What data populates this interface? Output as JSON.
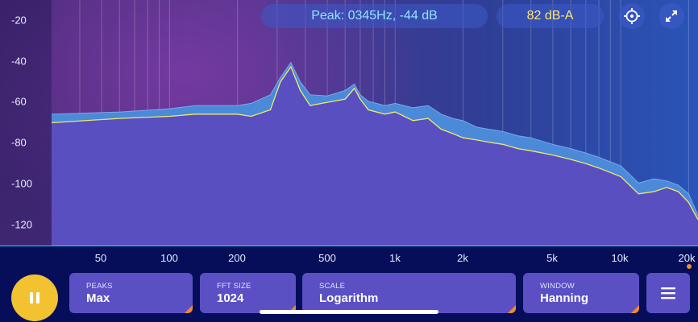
{
  "header": {
    "peak_readout": "Peak: 0345Hz, -44 dB",
    "level_readout": "82 dB-A"
  },
  "icons": {
    "crosshair": "crosshair-icon",
    "fullscreen": "collapse-arrows-icon",
    "pause": "pause-icon",
    "menu": "hamburger-menu-icon"
  },
  "y_axis": {
    "ticks": [
      "-20",
      "-40",
      "-60",
      "-80",
      "-100",
      "-120"
    ]
  },
  "x_axis": {
    "ticks": [
      "50",
      "100",
      "200",
      "500",
      "1k",
      "2k",
      "5k",
      "10k",
      "20k"
    ]
  },
  "controls": {
    "peaks": {
      "label": "PEAKS",
      "value": "Max"
    },
    "fft_size": {
      "label": "FFT SIZE",
      "value": "1024"
    },
    "scale": {
      "label": "SCALE",
      "value": "Logarithm"
    },
    "window": {
      "label": "WINDOW",
      "value": "Hanning"
    }
  },
  "colors": {
    "spectrum_fill": "#5a4fc0",
    "peak_hold_fill": "#4a8ad8",
    "trace_line": "#f2e86a",
    "accent_cyan": "#35d0e6",
    "play_button": "#f2c230",
    "corner_marker": "#f28a2c"
  },
  "chart_data": {
    "type": "area",
    "x_scale": "log",
    "xlim": [
      30,
      22000
    ],
    "ylim": [
      -128,
      -14
    ],
    "series": [
      {
        "x": [
          30,
          60,
          100,
          130,
          200,
          230,
          280,
          310,
          345,
          380,
          420,
          500,
          600,
          660,
          700,
          760,
          900,
          1000,
          1200,
          1400,
          1600,
          1800,
          2000,
          2300,
          2600,
          3000,
          3500,
          4000,
          5000,
          6000,
          7000,
          8000,
          10000,
          12000,
          14000,
          16000,
          18000,
          20000,
          22000
        ],
        "values": [
          -67,
          -66,
          -64.5,
          -63,
          -63,
          -62,
          -58,
          -50,
          -43,
          -52,
          -58,
          -58.5,
          -56,
          -53,
          -58,
          -61,
          -63,
          -62,
          -64,
          -63,
          -67,
          -69,
          -70,
          -73,
          -74,
          -75,
          -77,
          -78,
          -81,
          -83,
          -85,
          -87,
          -91,
          -99,
          -97,
          -98,
          -100,
          -104,
          -114
        ]
      },
      {
        "x": [
          30,
          60,
          100,
          130,
          200,
          230,
          280,
          310,
          345,
          380,
          420,
          500,
          600,
          660,
          700,
          760,
          900,
          1000,
          1200,
          1400,
          1600,
          1800,
          2000,
          2300,
          2600,
          3000,
          3500,
          4000,
          5000,
          6000,
          7000,
          8000,
          10000,
          12000,
          14000,
          16000,
          18000,
          20000,
          22000
        ],
        "values": [
          -71,
          -69,
          -68,
          -67,
          -67,
          -68,
          -65,
          -52,
          -45,
          -56,
          -63,
          -61.5,
          -60,
          -55,
          -60,
          -65,
          -67,
          -66,
          -70,
          -69,
          -74,
          -76,
          -78,
          -79,
          -80,
          -81,
          -83,
          -84,
          -86,
          -88,
          -90,
          -92,
          -96,
          -104,
          -103,
          -101,
          -103,
          -108,
          -116
        ]
      }
    ]
  }
}
